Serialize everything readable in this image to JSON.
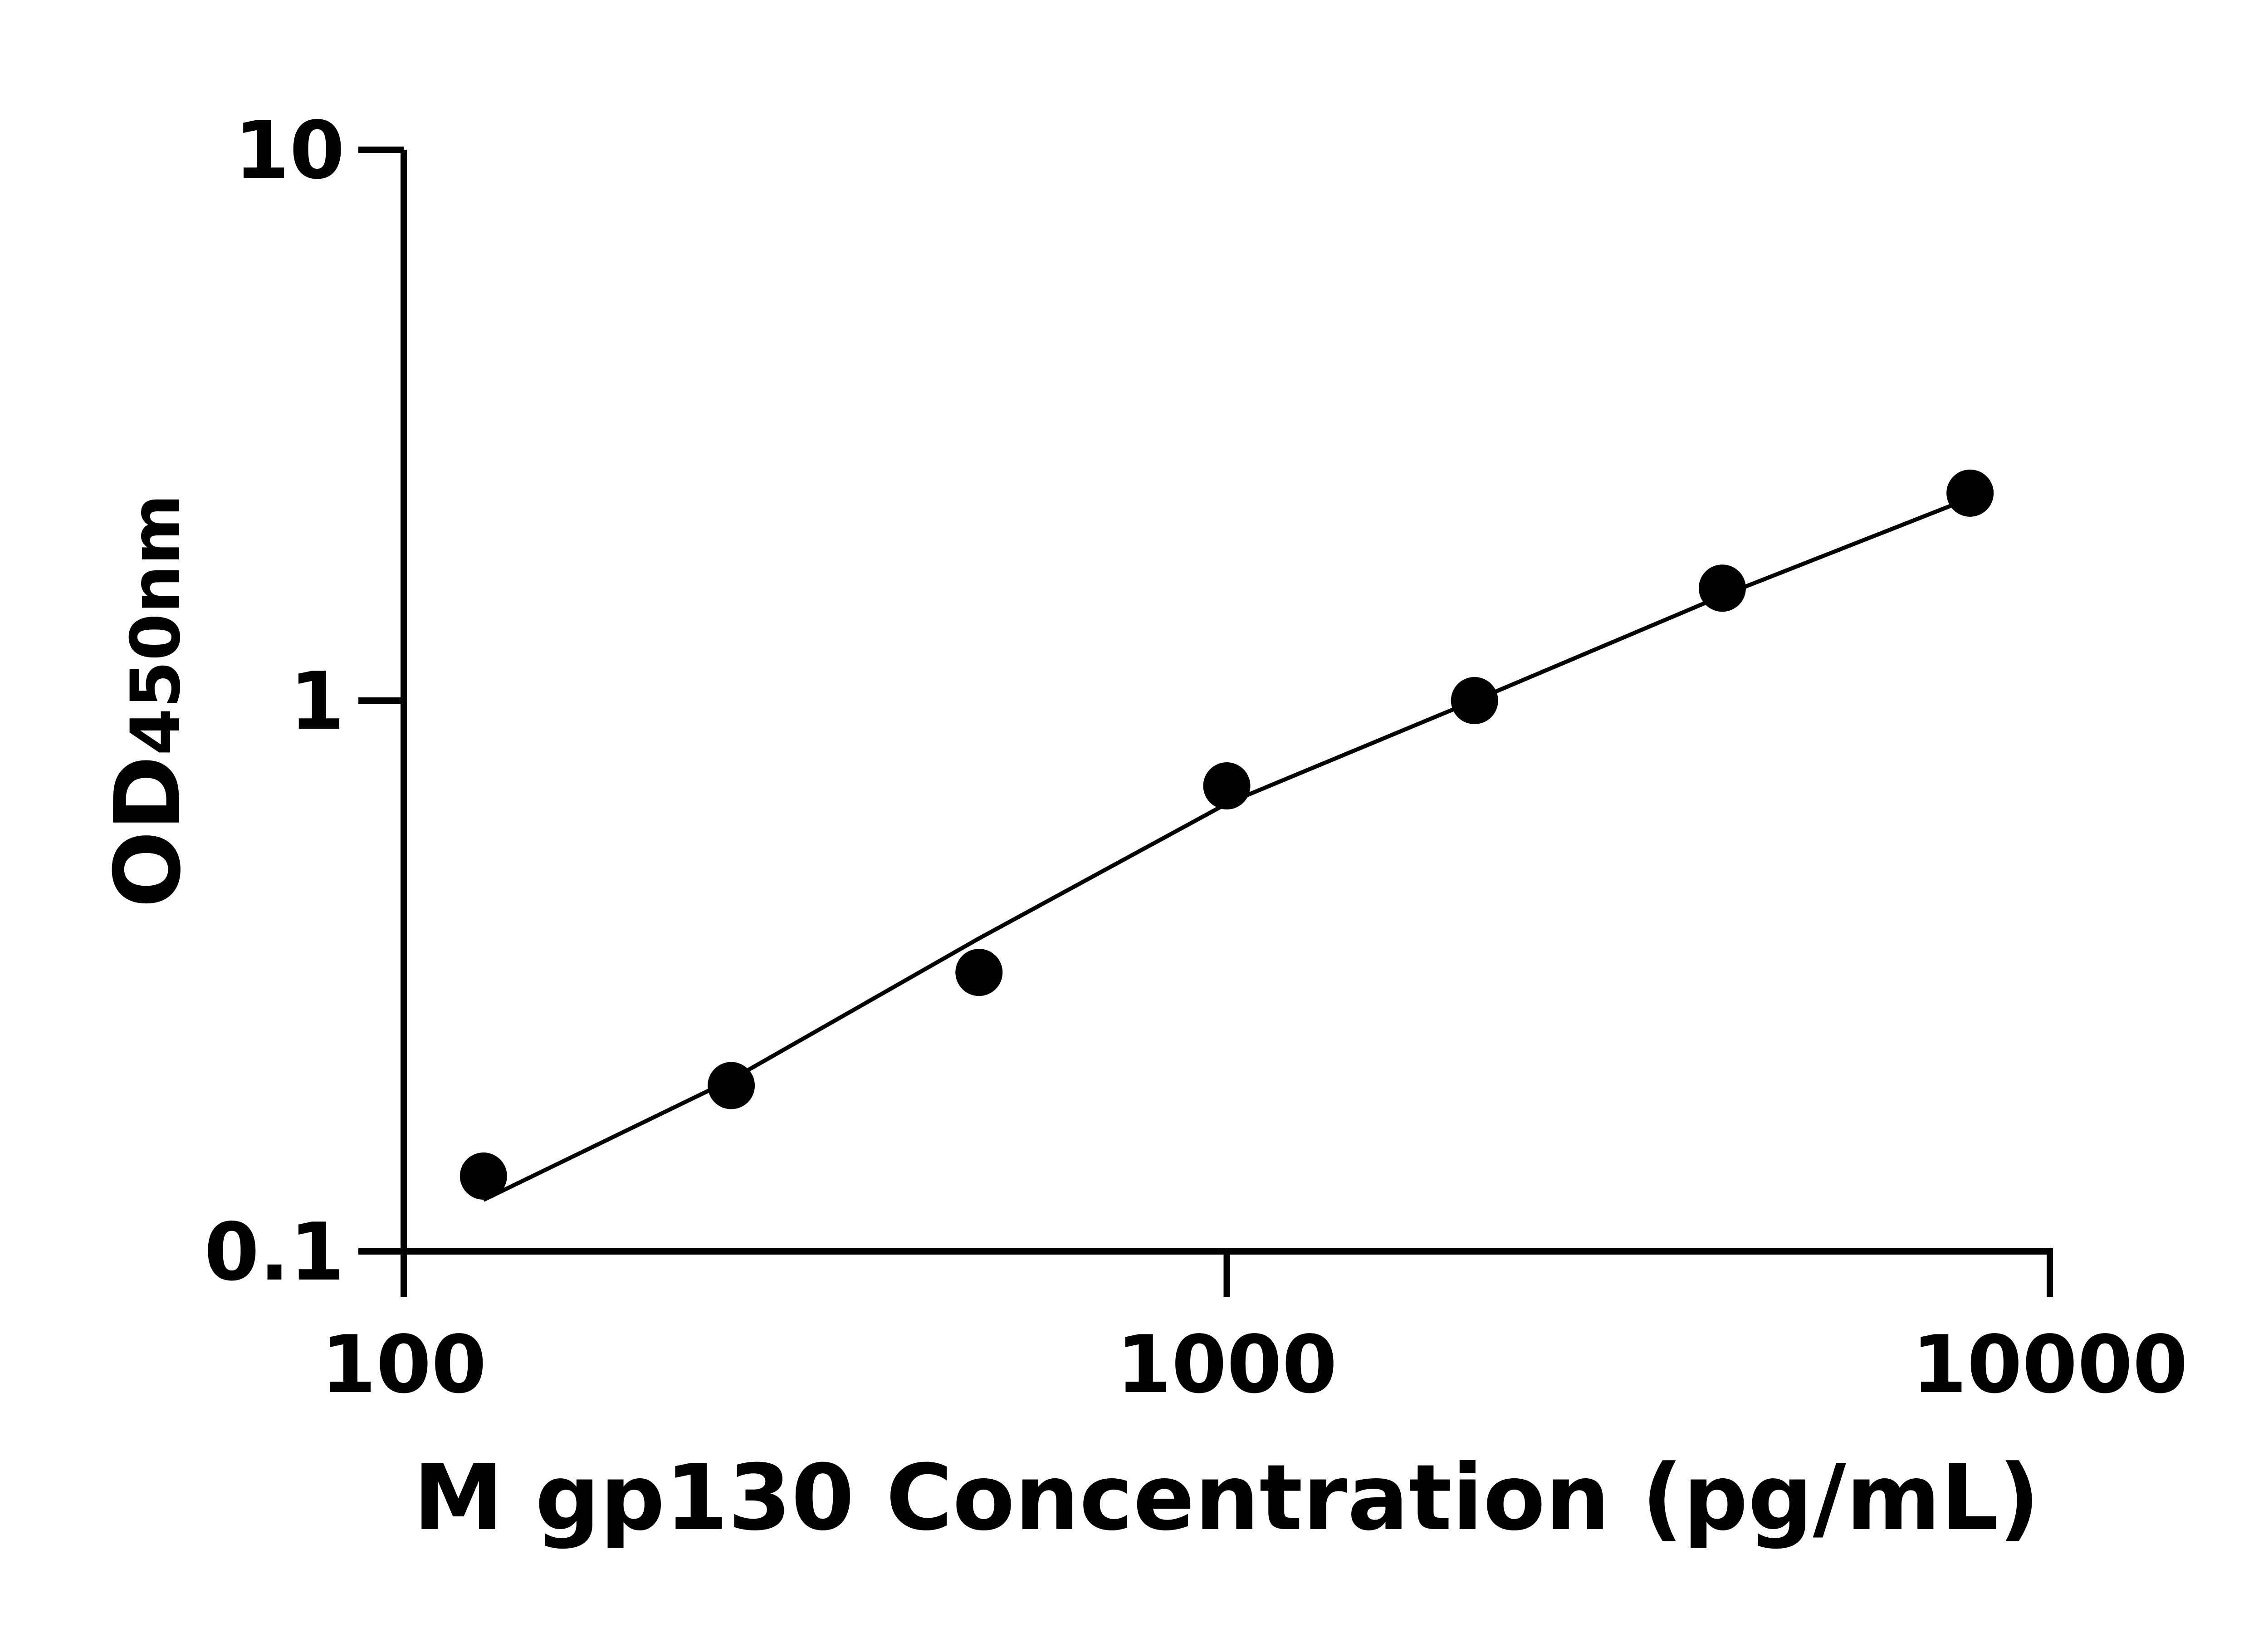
{
  "chart_data": {
    "type": "scatter",
    "title": "",
    "xlabel": "M gp130 Concentration (pg/mL)",
    "ylabel_main": "OD",
    "ylabel_sub": "450nm",
    "xscale": "log",
    "yscale": "log",
    "xlim": [
      100,
      10000
    ],
    "ylim": [
      0.1,
      10
    ],
    "xticks": [
      100,
      1000,
      10000
    ],
    "xtick_labels": [
      "100",
      "1000",
      "10000"
    ],
    "yticks": [
      0.1,
      1,
      10
    ],
    "ytick_labels": [
      "0.1",
      "1",
      "10"
    ],
    "grid": false,
    "legend": "none",
    "series": [
      {
        "kind": "points",
        "x": [
          125,
          250,
          500,
          1000,
          2000,
          4000,
          8000
        ],
        "y": [
          0.137,
          0.2,
          0.321,
          0.7,
          1.0,
          1.6,
          2.38
        ],
        "color": "#000000"
      },
      {
        "kind": "fit-curve",
        "x": [
          125,
          250,
          500,
          1000,
          2000,
          4000,
          8000
        ],
        "y": [
          0.124,
          0.205,
          0.37,
          0.65,
          1.0,
          1.55,
          2.33
        ],
        "color": "#000000"
      }
    ]
  }
}
